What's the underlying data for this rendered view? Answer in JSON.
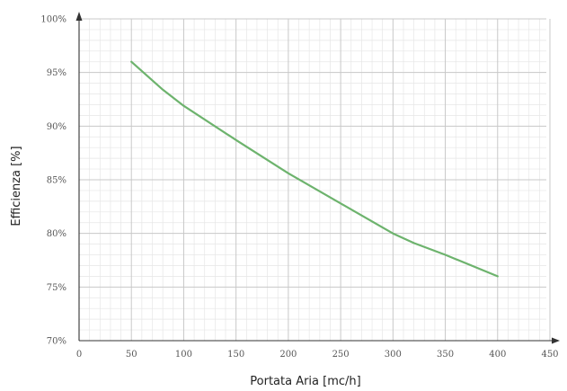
{
  "chart_data": {
    "type": "line",
    "title": "",
    "xlabel": "Portata Aria [mc/h]",
    "ylabel": "Efficienza [%]",
    "xlim": [
      0,
      450
    ],
    "ylim": [
      70,
      100
    ],
    "x_ticks": [
      0,
      50,
      100,
      150,
      200,
      250,
      300,
      350,
      400,
      450
    ],
    "y_ticks": [
      70,
      75,
      80,
      85,
      90,
      95,
      100
    ],
    "x_tick_labels": [
      "0",
      "50",
      "100",
      "150",
      "200",
      "250",
      "300",
      "350",
      "400",
      "450"
    ],
    "y_tick_labels": [
      "70%",
      "75%",
      "80%",
      "85%",
      "90%",
      "95%",
      "100%"
    ],
    "grid": true,
    "legend": "none",
    "series": [
      {
        "color": "#6db36d",
        "x": [
          50,
          80,
          100,
          150,
          200,
          250,
          300,
          320,
          350,
          400
        ],
        "y": [
          96,
          93.4,
          91.9,
          88.7,
          85.6,
          82.8,
          80.0,
          79.1,
          78.0,
          76.0
        ]
      }
    ]
  }
}
